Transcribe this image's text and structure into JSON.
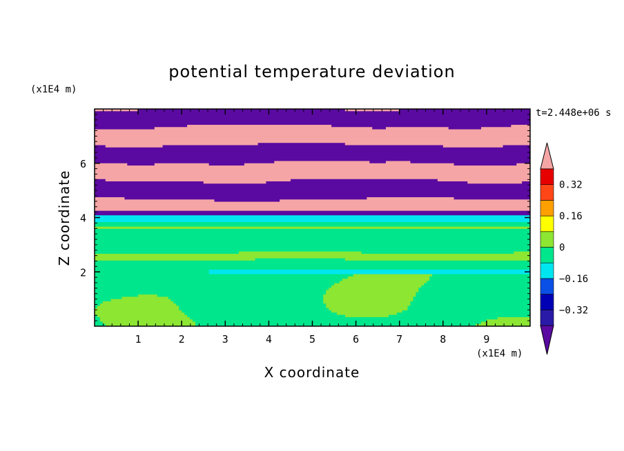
{
  "chart_data": {
    "type": "heatmap",
    "title": "potential temperature deviation",
    "xlabel": "X coordinate",
    "ylabel": "Z coordinate",
    "x_unit": "(x1E4 m)",
    "y_unit": "(x1E4 m)",
    "time_label": "t=2.448e+06 s",
    "xlim": [
      0,
      10
    ],
    "ylim": [
      0,
      8
    ],
    "x_ticks": [
      1,
      2,
      3,
      4,
      5,
      6,
      7,
      8,
      9
    ],
    "x_tick_labels": [
      "1",
      "2",
      "3",
      "4",
      "5",
      "6",
      "7",
      "8",
      "9"
    ],
    "y_ticks": [
      2,
      4,
      6
    ],
    "y_tick_labels": [
      "2",
      "4",
      "6"
    ],
    "colorbar": {
      "levels": [
        -0.4,
        -0.32,
        -0.24,
        -0.16,
        -0.08,
        0,
        0.08,
        0.16,
        0.24,
        0.32,
        0.4
      ],
      "colors": [
        "#5a0aa0",
        "#2a1aa8",
        "#0000b4",
        "#0a50e6",
        "#00e6f0",
        "#00e68c",
        "#8ce632",
        "#ffff00",
        "#ffa000",
        "#ff4616",
        "#e60000",
        "#f5a5a5"
      ],
      "tick_values": [
        -0.32,
        -0.16,
        0,
        0.16,
        0.32
      ],
      "tick_labels": [
        "−0.32",
        "−0.16",
        "0",
        "0.16",
        "0.32"
      ]
    },
    "regions": {
      "upper": {
        "z_range": [
          4.0,
          8.0
        ],
        "pattern": "alternating bands",
        "dominant_values": [
          -0.45,
          0.45
        ]
      },
      "interface": {
        "z_range": [
          3.8,
          4.2
        ],
        "value": -0.12
      },
      "lower": {
        "z_range": [
          0,
          3.8
        ],
        "dominant_values": [
          -0.05,
          0.05
        ]
      },
      "lower_layer_line": {
        "z": 2.0,
        "value": -0.12
      }
    }
  }
}
